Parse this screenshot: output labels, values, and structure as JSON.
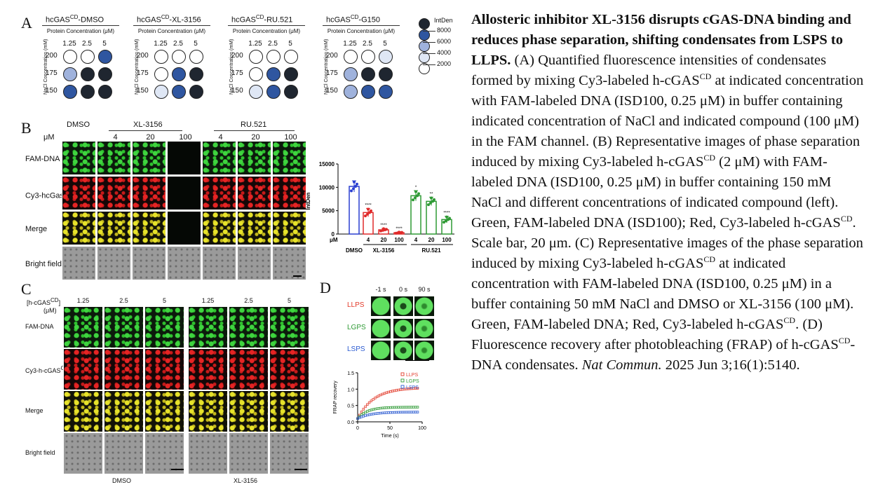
{
  "panel_labels": {
    "a": "A",
    "b": "B",
    "c": "C",
    "d": "D"
  },
  "panelA": {
    "groups": [
      {
        "title": "hcGAS",
        "sup": "CD",
        "title_rest": "-DMSO"
      },
      {
        "title": "hcGAS",
        "sup": "CD",
        "title_rest": "-XL-3156"
      },
      {
        "title": "hcGAS",
        "sup": "CD",
        "title_rest": "-RU.521"
      },
      {
        "title": "hcGAS",
        "sup": "CD",
        "title_rest": "-G150"
      }
    ],
    "protein_axis": "Protein Concentration (μM)",
    "nacl_axis": "NaCl Concentration (mM)",
    "cols": [
      "1.25",
      "2.5",
      "5"
    ],
    "rows": [
      "200",
      "175",
      "150"
    ],
    "levels": [
      [
        [
          0,
          0,
          3
        ],
        [
          2,
          4,
          4
        ],
        [
          3,
          4,
          4
        ]
      ],
      [
        [
          0,
          0,
          0
        ],
        [
          0,
          3,
          4
        ],
        [
          1,
          3,
          4
        ]
      ],
      [
        [
          0,
          0,
          0
        ],
        [
          0,
          3,
          4
        ],
        [
          1,
          3,
          4
        ]
      ],
      [
        [
          0,
          0,
          1
        ],
        [
          2,
          4,
          4
        ],
        [
          2,
          3,
          3
        ]
      ]
    ],
    "level_colors": [
      "#ffffff",
      "#dfe7f5",
      "#9fb2dc",
      "#2f56a0",
      "#1f2630"
    ],
    "legend": {
      "title": "IntDen",
      "ticks": [
        "8000",
        "6000",
        "4000",
        "2000"
      ]
    }
  },
  "panelB": {
    "units": "μM",
    "groups": [
      "DMSO",
      "XL-3156",
      "RU.521"
    ],
    "conc": [
      "4",
      "20",
      "100",
      "4",
      "20",
      "100"
    ],
    "rows": [
      "FAM-DNA",
      "Cy3-hcGas",
      "Merge",
      "Bright field"
    ],
    "row_sup": [
      "",
      "CD",
      "",
      ""
    ]
  },
  "chart_data": {
    "type": "bar",
    "ylabel": "IntDen",
    "ylim": [
      0,
      15000
    ],
    "yticks": [
      "0",
      "5000",
      "10000",
      "15000"
    ],
    "categories": [
      "DMSO",
      "4",
      "20",
      "100",
      "4",
      "20",
      "100"
    ],
    "group_labels": [
      "DMSO",
      "XL-3156",
      "RU.521"
    ],
    "units_label": "μM",
    "values": [
      10200,
      4600,
      900,
      300,
      8200,
      7000,
      3100
    ],
    "errors": [
      1200,
      900,
      300,
      150,
      1100,
      900,
      700
    ],
    "colors": [
      "#2a3fd1",
      "#e02a2a",
      "#e02a2a",
      "#e02a2a",
      "#2e9a34",
      "#2e9a34",
      "#2e9a34"
    ],
    "stars": [
      "",
      "****",
      "****",
      "****",
      "*",
      "**",
      "****"
    ]
  },
  "panelC": {
    "header": "[h-cGAS",
    "header_sup": "CD",
    "header_end": "]",
    "unit": "(μM)",
    "conc": [
      "1.25",
      "2.5",
      "5",
      "1.25",
      "2.5",
      "5"
    ],
    "rows": [
      "FAM-DNA",
      "Cy3-h-cGAS",
      "Merge",
      "Bright field"
    ],
    "row_sup": [
      "",
      "CD",
      "",
      ""
    ],
    "bottom": [
      "DMSO",
      "XL-3156"
    ]
  },
  "panelD": {
    "times": [
      "-1 s",
      "0 s",
      "90 s"
    ],
    "rows": [
      "LLPS",
      "LGPS",
      "LSPS"
    ],
    "row_colors": [
      "#e23a2a",
      "#2e9a34",
      "#2a5ad1"
    ],
    "frap": {
      "ylabel": "FRAP recovery",
      "xlabel": "Time (s)",
      "yticks": [
        "0.0",
        "0.5",
        "1.0",
        "1.5"
      ],
      "xticks": [
        "0",
        "50",
        "100"
      ],
      "legend": [
        "LLPS",
        "LGPS",
        "LSPS"
      ]
    }
  },
  "caption": {
    "bold": "Allosteric inhibitor XL-3156 disrupts cGAS-DNA binding and reduces phase separation, shifting condensates from LSPS to LLPS.",
    "body": " (A) Quantified fluorescence intensities of condensates formed by mixing Cy3-labeled h-cGAS",
    "sup1": "CD",
    "body2": " at indicated concentration with FAM-labeled DNA (ISD100, 0.25 μM) in buffer containing indicated concentration of NaCl and indicated compound (100 μM) in the FAM channel. (B) Representative images of phase separation induced by mixing Cy3-labeled h-cGAS",
    "sup2": "CD",
    "body3": " (2 μM) with FAM-labeled DNA (ISD100, 0.25 μM) in buffer containing 150 mM NaCl and different concentrations of indicated compound (left). Green, FAM-labeled DNA (ISD100); Red, Cy3-labeled h-cGAS",
    "sup3": "CD",
    "body4": ". Scale bar, 20 μm. (C) Representative images of the phase separation induced by mixing Cy3-labeled h-cGAS",
    "sup4": "CD",
    "body5": " at indicated concentration with FAM-labeled DNA (ISD100, 0.25 μM) in a buffer containing 50 mM NaCl and DMSO or XL-3156 (100 μM). Green, FAM-labeled DNA; Red, Cy3-labeled h-cGAS",
    "sup5": "CD",
    "body6": ".  (D) Fluorescence recovery after photobleaching (FRAP) of h-cGAS",
    "sup6": "CD",
    "body7": "-DNA condensates. ",
    "journal": "Nat Commun.",
    "citation": " 2025 Jun 3;16(1):5140."
  }
}
